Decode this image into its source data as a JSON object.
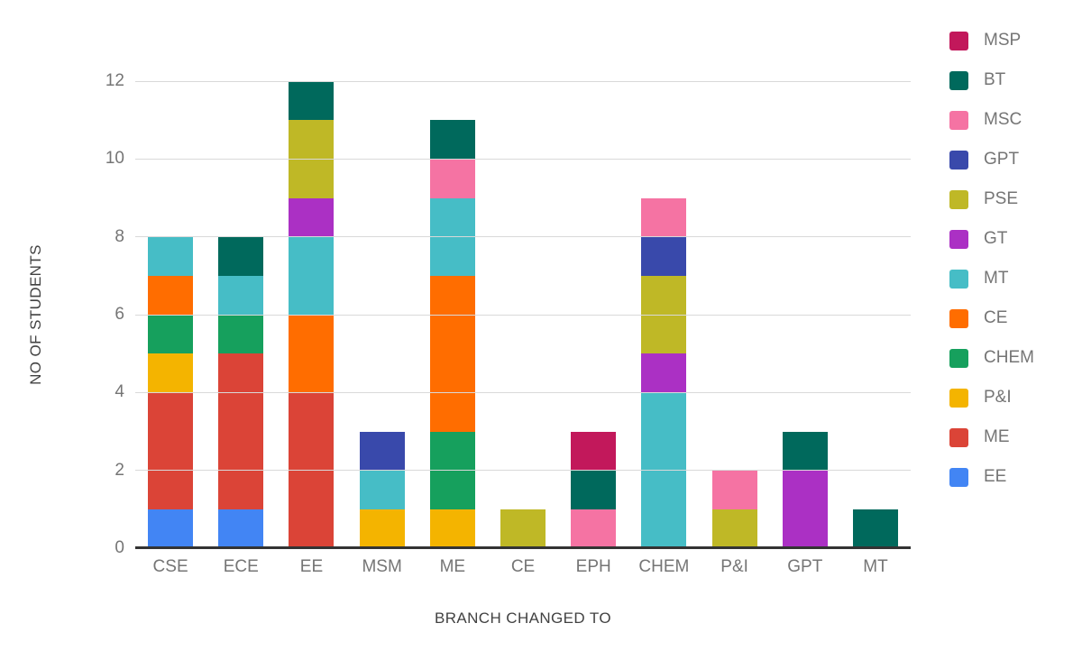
{
  "chart_data": {
    "type": "bar",
    "stacked": true,
    "title": "",
    "xlabel": "BRANCH CHANGED TO",
    "ylabel": "NO OF STUDENTS",
    "ylim": [
      0,
      12
    ],
    "yticks": [
      0,
      2,
      4,
      6,
      8,
      10,
      12
    ],
    "grid": true,
    "legend_position": "right",
    "legend_order_top_to_bottom": [
      "MSP",
      "BT",
      "MSC",
      "GPT",
      "PSE",
      "GT",
      "MT",
      "CE",
      "CHEM",
      "P&I",
      "ME",
      "EE"
    ],
    "categories": [
      "CSE",
      "ECE",
      "EE",
      "MSM",
      "ME",
      "CE",
      "EPH",
      "CHEM",
      "P&I",
      "GPT",
      "MT"
    ],
    "series_bottom_to_top": [
      {
        "name": "EE",
        "color": "#4285F4",
        "values": [
          1,
          1,
          0,
          0,
          0,
          0,
          0,
          0,
          0,
          0,
          0
        ]
      },
      {
        "name": "ME",
        "color": "#DB4437",
        "values": [
          3,
          4,
          4,
          0,
          0,
          0,
          0,
          0,
          0,
          0,
          0
        ]
      },
      {
        "name": "P&I",
        "color": "#F4B400",
        "values": [
          1,
          0,
          0,
          1,
          1,
          0,
          0,
          0,
          0,
          0,
          0
        ]
      },
      {
        "name": "CHEM",
        "color": "#16A05D",
        "values": [
          1,
          1,
          0,
          0,
          2,
          0,
          0,
          0,
          0,
          0,
          0
        ]
      },
      {
        "name": "CE",
        "color": "#FF6D00",
        "values": [
          1,
          0,
          2,
          0,
          4,
          0,
          0,
          0,
          0,
          0,
          0
        ]
      },
      {
        "name": "MT",
        "color": "#46BDC6",
        "values": [
          1,
          1,
          2,
          1,
          2,
          0,
          0,
          4,
          0,
          0,
          0
        ]
      },
      {
        "name": "GT",
        "color": "#AB30C4",
        "values": [
          0,
          0,
          1,
          0,
          0,
          0,
          0,
          1,
          0,
          2,
          0
        ]
      },
      {
        "name": "PSE",
        "color": "#BFB826",
        "values": [
          0,
          0,
          2,
          0,
          0,
          1,
          0,
          2,
          1,
          0,
          0
        ]
      },
      {
        "name": "GPT",
        "color": "#3949AB",
        "values": [
          0,
          0,
          0,
          1,
          0,
          0,
          0,
          1,
          0,
          0,
          0
        ]
      },
      {
        "name": "MSC",
        "color": "#F573A3",
        "values": [
          0,
          0,
          0,
          0,
          1,
          0,
          1,
          1,
          1,
          0,
          0
        ]
      },
      {
        "name": "BT",
        "color": "#00695C",
        "values": [
          0,
          1,
          1,
          0,
          1,
          0,
          1,
          0,
          0,
          1,
          1
        ]
      },
      {
        "name": "MSP",
        "color": "#C2185B",
        "values": [
          0,
          0,
          0,
          0,
          0,
          0,
          1,
          0,
          0,
          0,
          0
        ]
      }
    ],
    "category_totals": {
      "CSE": 8,
      "ECE": 8,
      "EE": 12,
      "MSM": 3,
      "ME": 11,
      "CE": 1,
      "EPH": 3,
      "CHEM": 9,
      "P&I": 2,
      "GPT": 3,
      "MT": 1
    }
  },
  "theme": {
    "background": "#ffffff",
    "gridline_color": "#d9d9d9",
    "baseline_color": "#333333",
    "tick_text_color": "#757575",
    "axis_title_color": "#424242",
    "legend_text_color": "#757575"
  }
}
